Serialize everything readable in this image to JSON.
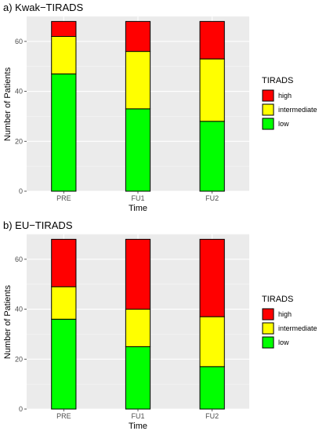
{
  "chart_data": [
    {
      "type": "bar",
      "stacked": true,
      "title": "a) Kwak−TIRADS",
      "xlabel": "Time",
      "ylabel": "Number of Patients",
      "categories": [
        "PRE",
        "FU1",
        "FU2"
      ],
      "ylim": [
        0,
        70
      ],
      "yticks": [
        0,
        20,
        40,
        60
      ],
      "grid": true,
      "legend": {
        "title": "TIRADS",
        "position": "right"
      },
      "series": [
        {
          "name": "low",
          "color": "#00ff00",
          "values": [
            47,
            33,
            28
          ]
        },
        {
          "name": "intermediate",
          "color": "#ffff00",
          "values": [
            15,
            23,
            25
          ]
        },
        {
          "name": "high",
          "color": "#ff0000",
          "values": [
            6,
            12,
            15
          ]
        }
      ]
    },
    {
      "type": "bar",
      "stacked": true,
      "title": "b) EU−TIRADS",
      "xlabel": "Time",
      "ylabel": "Number of Patients",
      "categories": [
        "PRE",
        "FU1",
        "FU2"
      ],
      "ylim": [
        0,
        70
      ],
      "yticks": [
        0,
        20,
        40,
        60
      ],
      "grid": true,
      "legend": {
        "title": "TIRADS",
        "position": "right"
      },
      "series": [
        {
          "name": "low",
          "color": "#00ff00",
          "values": [
            36,
            25,
            17
          ]
        },
        {
          "name": "intermediate",
          "color": "#ffff00",
          "values": [
            13,
            15,
            20
          ]
        },
        {
          "name": "high",
          "color": "#ff0000",
          "values": [
            19,
            28,
            31
          ]
        }
      ]
    }
  ]
}
